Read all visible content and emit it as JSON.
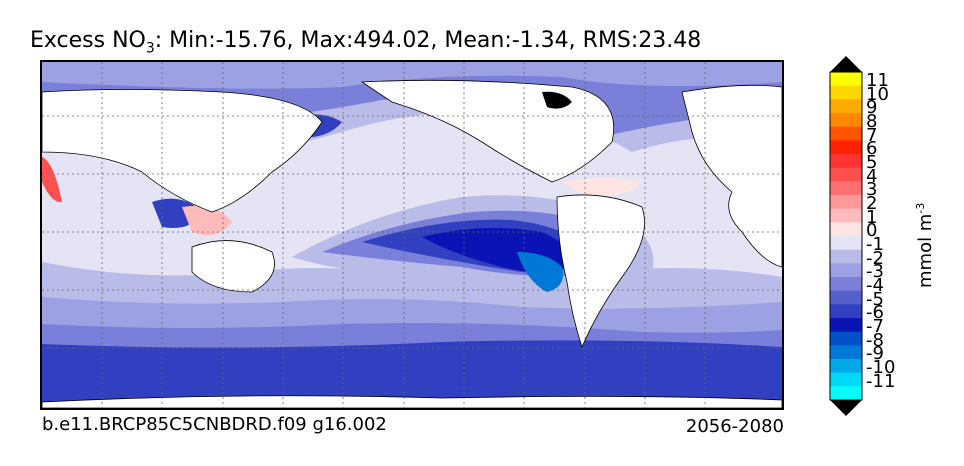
{
  "title": {
    "prefix": "Excess NO",
    "subscript": "3",
    "stats": ": Min:-15.76, Max:494.02, Mean:-1.34, RMS:23.48"
  },
  "footer": {
    "run_label": "b.e11.BRCP85C5CNBDRD.f09 g16.002",
    "period": "2056-2080"
  },
  "colorbar": {
    "unit_text": "mmol m",
    "unit_exp": "-3",
    "ticks": [
      "11",
      "10",
      "9",
      "8",
      "7",
      "6",
      "5",
      "4",
      "3",
      "2",
      "1",
      "0",
      "-1",
      "-2",
      "-3",
      "-4",
      "-5",
      "-6",
      "-7",
      "-8",
      "-9",
      "-10",
      "-11"
    ],
    "colors": [
      "#ffff00",
      "#ffd700",
      "#ffaa00",
      "#ff8800",
      "#ff5500",
      "#ff2200",
      "#ff3333",
      "#ff5050",
      "#ff7070",
      "#ff9999",
      "#ffbbbb",
      "#ffe4e4",
      "#e4e4f4",
      "#b9bce9",
      "#9ca1e3",
      "#7a80da",
      "#5560cc",
      "#3040c0",
      "#0a14b4",
      "#0050c8",
      "#0078d8",
      "#00a8e8",
      "#00d8f8",
      "#00ffff"
    ],
    "over_color": "#000000",
    "under_color": "#000000"
  },
  "map": {
    "colors": {
      "ocean_light": "#e4e4f4",
      "band_1": "#b9bce9",
      "band_2": "#9ca1e3",
      "band_3": "#7a80da",
      "band_4": "#3040c0",
      "band_deep": "#0a14b4",
      "band_teal": "#0078d8",
      "pink": "#ffbbbb",
      "red": "#ff5050",
      "land": "#ffffff",
      "grid": "#666666"
    }
  }
}
